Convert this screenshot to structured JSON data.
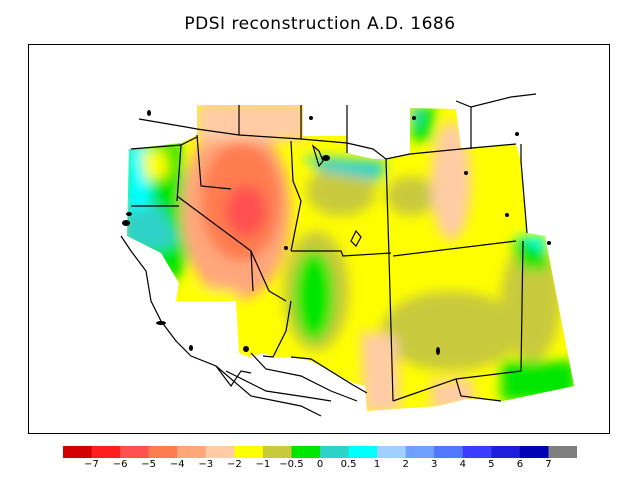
{
  "title": "PDSI reconstruction A.D. 1686",
  "colorbar": {
    "colors": [
      "#d20000",
      "#ff1e1e",
      "#ff5050",
      "#ff7b50",
      "#ffa77b",
      "#ffcca5",
      "#ffff00",
      "#c9c93c",
      "#00e600",
      "#2dd2c8",
      "#00ffff",
      "#9fd0ff",
      "#6ea0ff",
      "#5078ff",
      "#3c3cff",
      "#1e1edc",
      "#0000b4",
      "#7f7f7f"
    ],
    "labels": [
      "−7",
      "−6",
      "−5",
      "−4",
      "−3",
      "−2",
      "−1",
      "−0.5",
      "0",
      "0.5",
      "1",
      "2",
      "3",
      "4",
      "5",
      "6",
      "7"
    ]
  }
}
